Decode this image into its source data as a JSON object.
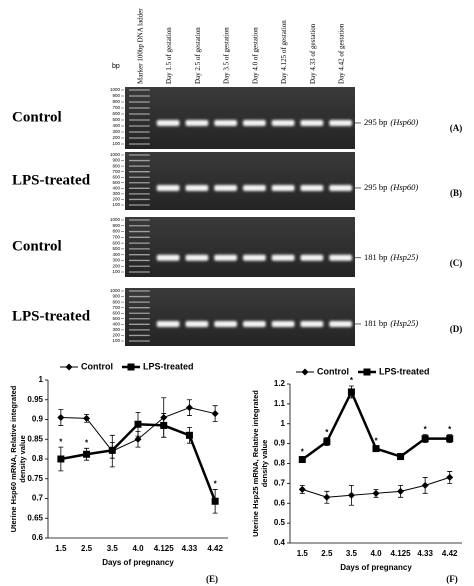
{
  "gel_panel": {
    "bp_label": "bp",
    "lanes": [
      "Marker 100bp DNA ladder",
      "Day 1.5 of gestation",
      "Day 2.5 of gestation",
      "Day 3.5 of gestation",
      "Day 4.0 of gestation",
      "Day 4.125 of gestation",
      "Day 4.33 of gestation",
      "Day 4.42 of gestation"
    ],
    "ladder": [
      "1000",
      "900",
      "800",
      "700",
      "600",
      "500",
      "400",
      "300",
      "200",
      "100"
    ],
    "rows": [
      {
        "group": "Control",
        "band_size": "295 bp",
        "gene": "(Hsp60)",
        "panel": "(A)"
      },
      {
        "group": "LPS-treated",
        "band_size": "295 bp",
        "gene": "(Hsp60)",
        "panel": "(B)"
      },
      {
        "group": "Control",
        "band_size": "181 bp",
        "gene": "(Hsp25)",
        "panel": "(C)"
      },
      {
        "group": "LPS-treated",
        "band_size": "181 bp",
        "gene": "(Hsp25)",
        "panel": "(D)"
      }
    ]
  },
  "chart_data": [
    {
      "type": "line",
      "panel": "(E)",
      "ylabel": [
        "Uterine Hsp60 mRNA, Relative integrated",
        "density value"
      ],
      "xlabel": "Days of pregnancy",
      "categories": [
        "1.5",
        "2.5",
        "3.5",
        "4.0",
        "4.125",
        "4.33",
        "4.42"
      ],
      "ylim": [
        0.6,
        1
      ],
      "yticks": [
        0.6,
        0.65,
        0.7,
        0.75,
        0.8,
        0.85,
        0.9,
        0.95,
        1
      ],
      "series": [
        {
          "name": "Control",
          "color": "#000000",
          "marker": "diamond",
          "line_width": 1,
          "values": [
            0.905,
            0.903,
            0.82,
            0.85,
            0.905,
            0.93,
            0.915
          ],
          "errors": [
            0.02,
            0.01,
            0.04,
            0.02,
            0.05,
            0.02,
            0.02
          ]
        },
        {
          "name": "LPS-treated",
          "color": "#000000",
          "marker": "square",
          "line_width": 2.5,
          "values": [
            0.8,
            0.812,
            0.822,
            0.888,
            0.885,
            0.86,
            0.693
          ],
          "errors": [
            0.03,
            0.015,
            0.02,
            0.03,
            0.03,
            0.02,
            0.03
          ],
          "significance": [
            "*",
            "*",
            null,
            null,
            null,
            null,
            "*"
          ]
        }
      ]
    },
    {
      "type": "line",
      "panel": "(F)",
      "ylabel": [
        "Uterine Hsp25 mRNA, Relative integrated",
        "density value"
      ],
      "xlabel": "Days of pregnancy",
      "categories": [
        "1.5",
        "2.5",
        "3.5",
        "4.0",
        "4.125",
        "4.33",
        "4.42"
      ],
      "ylim": [
        0.4,
        1.2
      ],
      "yticks": [
        0.4,
        0.5,
        0.6,
        0.7,
        0.8,
        0.9,
        1,
        1.1,
        1.2
      ],
      "series": [
        {
          "name": "Control",
          "color": "#000000",
          "marker": "diamond",
          "line_width": 1,
          "values": [
            0.67,
            0.63,
            0.64,
            0.65,
            0.66,
            0.69,
            0.73
          ],
          "errors": [
            0.02,
            0.03,
            0.05,
            0.02,
            0.03,
            0.04,
            0.03
          ]
        },
        {
          "name": "LPS-treated",
          "color": "#000000",
          "marker": "square",
          "line_width": 2.5,
          "values": [
            0.82,
            0.91,
            1.16,
            0.875,
            0.835,
            0.925,
            0.925
          ],
          "errors": [
            0.01,
            0.02,
            0.03,
            0.01,
            0.01,
            0.02,
            0.02
          ],
          "significance": [
            "*",
            "*",
            "*",
            "*",
            null,
            "*",
            "*"
          ]
        }
      ]
    }
  ]
}
